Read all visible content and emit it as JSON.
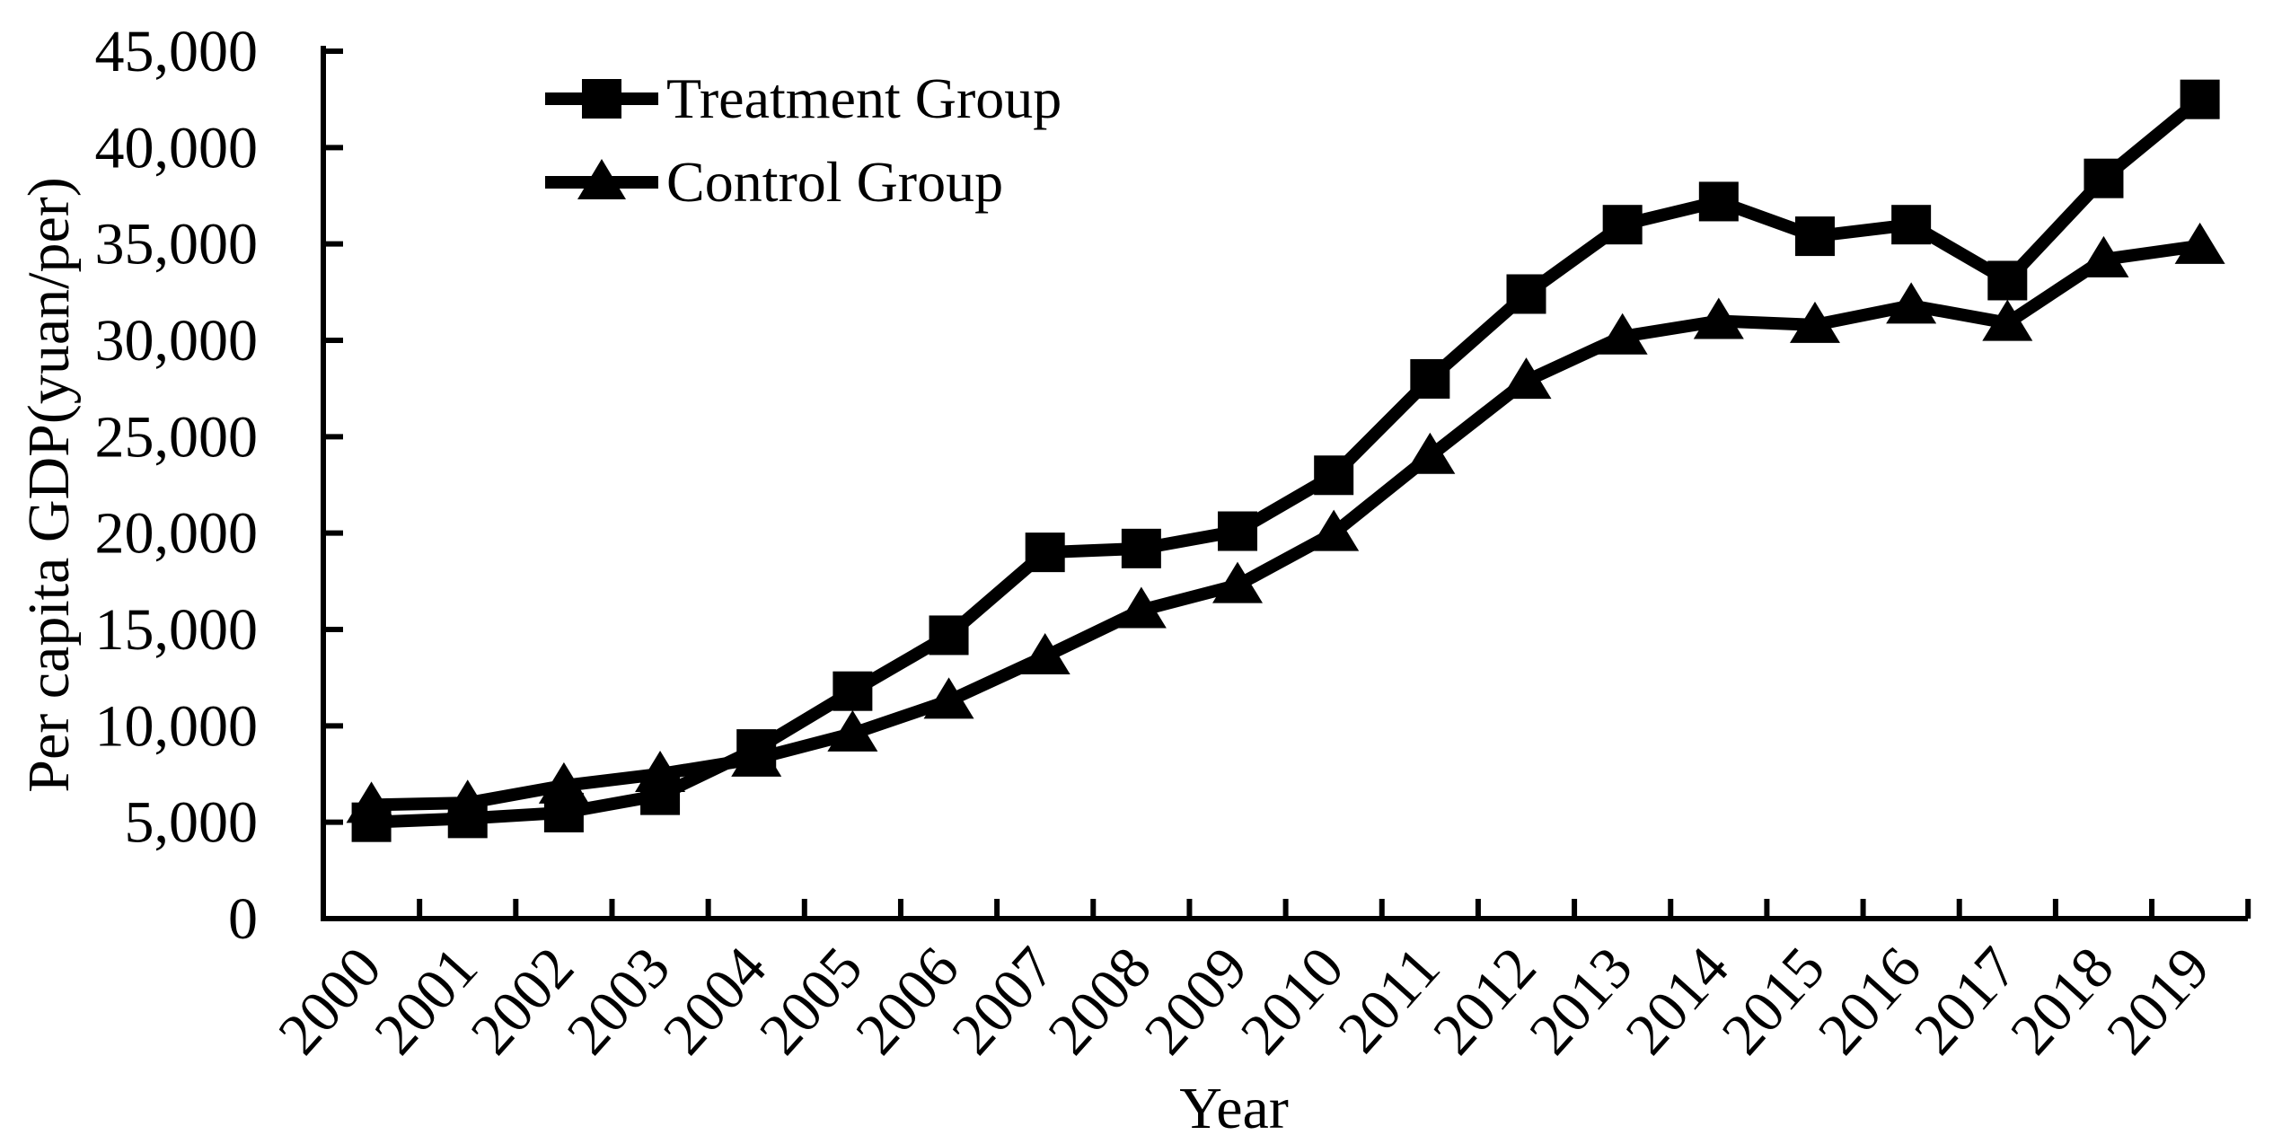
{
  "figure": {
    "background": "#ffffff",
    "ink_color": "#000000"
  },
  "y_axis": {
    "title": "Per capita GDP(yuan/per)",
    "tick_labels": [
      "0",
      "5,000",
      "10,000",
      "15,000",
      "20,000",
      "25,000",
      "30,000",
      "35,000",
      "40,000",
      "45,000"
    ]
  },
  "x_axis": {
    "title": "Year",
    "tick_labels": [
      "2000",
      "2001",
      "2002",
      "2003",
      "2004",
      "2005",
      "2006",
      "2007",
      "2008",
      "2009",
      "2010",
      "2011",
      "2012",
      "2013",
      "2014",
      "2015",
      "2016",
      "2017",
      "2018",
      "2019"
    ]
  },
  "legend": {
    "items": [
      {
        "label": "Treatment Group",
        "marker": "square"
      },
      {
        "label": "Control Group",
        "marker": "triangle"
      }
    ]
  },
  "chart_data": {
    "type": "line",
    "title": "",
    "xlabel": "Year",
    "ylabel": "Per capita GDP(yuan/per)",
    "x": [
      2000,
      2001,
      2002,
      2003,
      2004,
      2005,
      2006,
      2007,
      2008,
      2009,
      2010,
      2011,
      2012,
      2013,
      2014,
      2015,
      2016,
      2017,
      2018,
      2019
    ],
    "series": [
      {
        "name": "Treatment Group",
        "marker": "square",
        "color": "#000000",
        "values": [
          5000,
          5200,
          5500,
          6400,
          8800,
          11800,
          14700,
          19000,
          19200,
          20100,
          23000,
          28000,
          32400,
          36000,
          37200,
          35400,
          36000,
          33100,
          38400,
          42500
        ]
      },
      {
        "name": "Control Group",
        "marker": "triangle",
        "color": "#000000",
        "values": [
          5900,
          6000,
          6900,
          7500,
          8300,
          9600,
          11300,
          13600,
          16000,
          17300,
          20000,
          24000,
          27900,
          30200,
          31000,
          30800,
          31800,
          30900,
          34200,
          34900
        ]
      }
    ],
    "ylim": [
      0,
      45000
    ],
    "ytick_step": 5000,
    "grid": false,
    "legend_position": "top-left-inside"
  }
}
